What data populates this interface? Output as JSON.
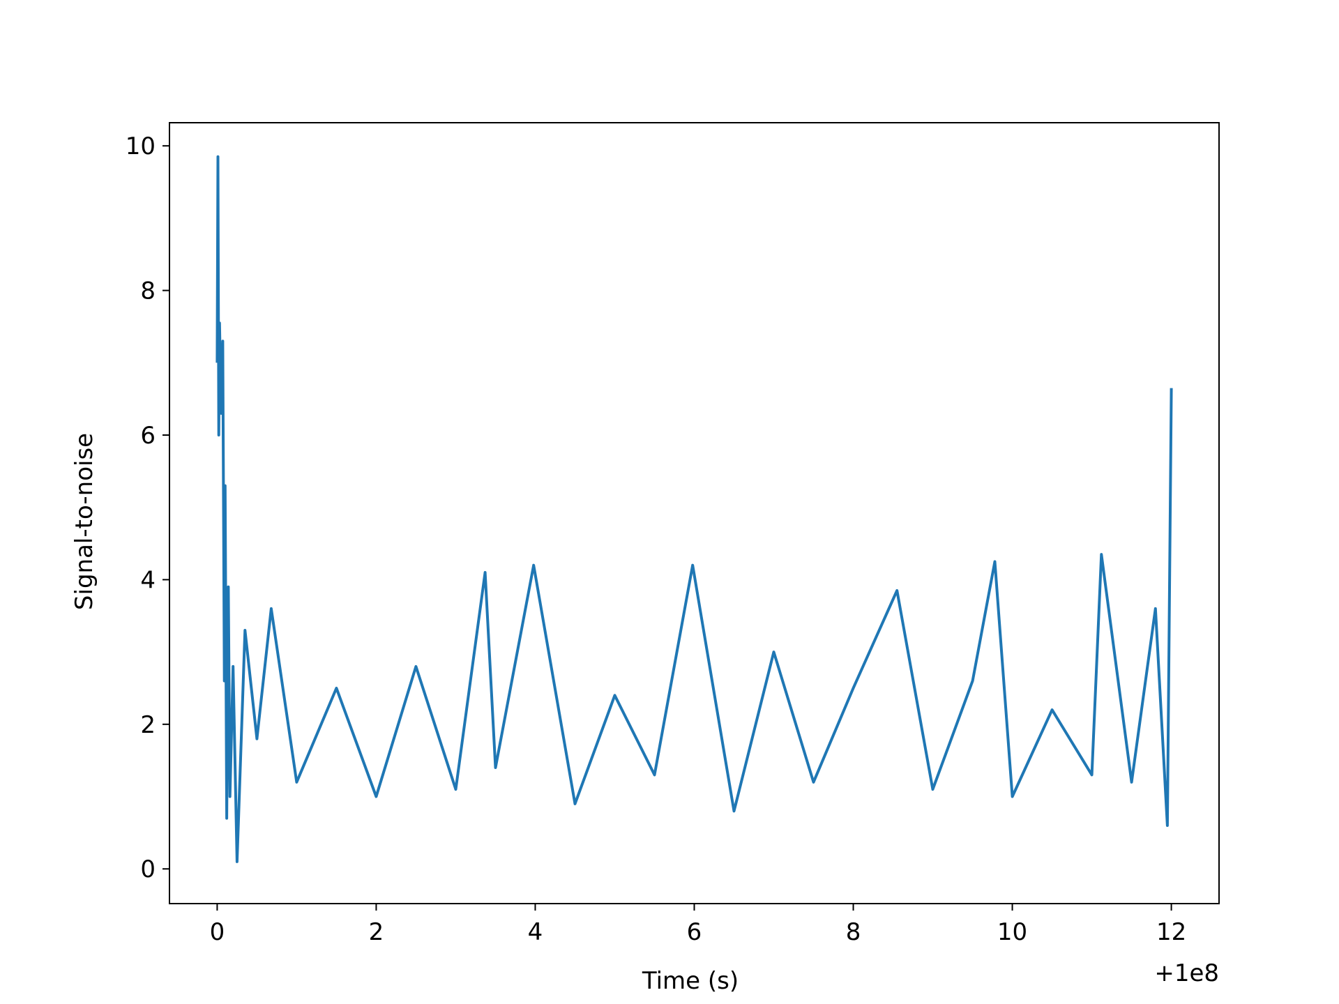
{
  "chart_data": {
    "type": "line",
    "title": "",
    "xlabel": "Time (s)",
    "ylabel": "Signal-to-noise",
    "x_offset_label": "+1e8",
    "xlim": [
      -0.6,
      12.6
    ],
    "ylim": [
      -0.48,
      10.32
    ],
    "x_ticks": [
      0,
      2,
      4,
      6,
      8,
      10,
      12
    ],
    "y_ticks": [
      0,
      2,
      4,
      6,
      8,
      10
    ],
    "grid": false,
    "legend": "none",
    "series": [
      {
        "color": "#1f77b4",
        "x": [
          0.0,
          0.01,
          0.02,
          0.03,
          0.05,
          0.07,
          0.09,
          0.1,
          0.12,
          0.14,
          0.16,
          0.2,
          0.25,
          0.35,
          0.5,
          0.68,
          1.0,
          1.5,
          2.0,
          2.5,
          3.0,
          3.37,
          3.5,
          3.98,
          4.5,
          5.0,
          5.5,
          5.98,
          6.5,
          7.0,
          7.5,
          8.0,
          8.55,
          9.0,
          9.5,
          9.78,
          10.0,
          10.5,
          11.0,
          11.12,
          11.5,
          11.8,
          11.95,
          12.0
        ],
        "y": [
          7.0,
          9.85,
          6.0,
          7.55,
          6.3,
          7.3,
          2.6,
          5.3,
          0.7,
          3.9,
          1.0,
          2.8,
          0.1,
          3.3,
          1.8,
          3.6,
          1.2,
          2.5,
          1.0,
          2.8,
          1.1,
          4.1,
          1.4,
          4.2,
          0.9,
          2.4,
          1.3,
          4.2,
          0.8,
          3.0,
          1.2,
          2.5,
          3.85,
          1.1,
          2.6,
          4.25,
          1.0,
          2.2,
          1.3,
          4.35,
          1.2,
          3.6,
          0.6,
          6.65
        ]
      }
    ]
  }
}
